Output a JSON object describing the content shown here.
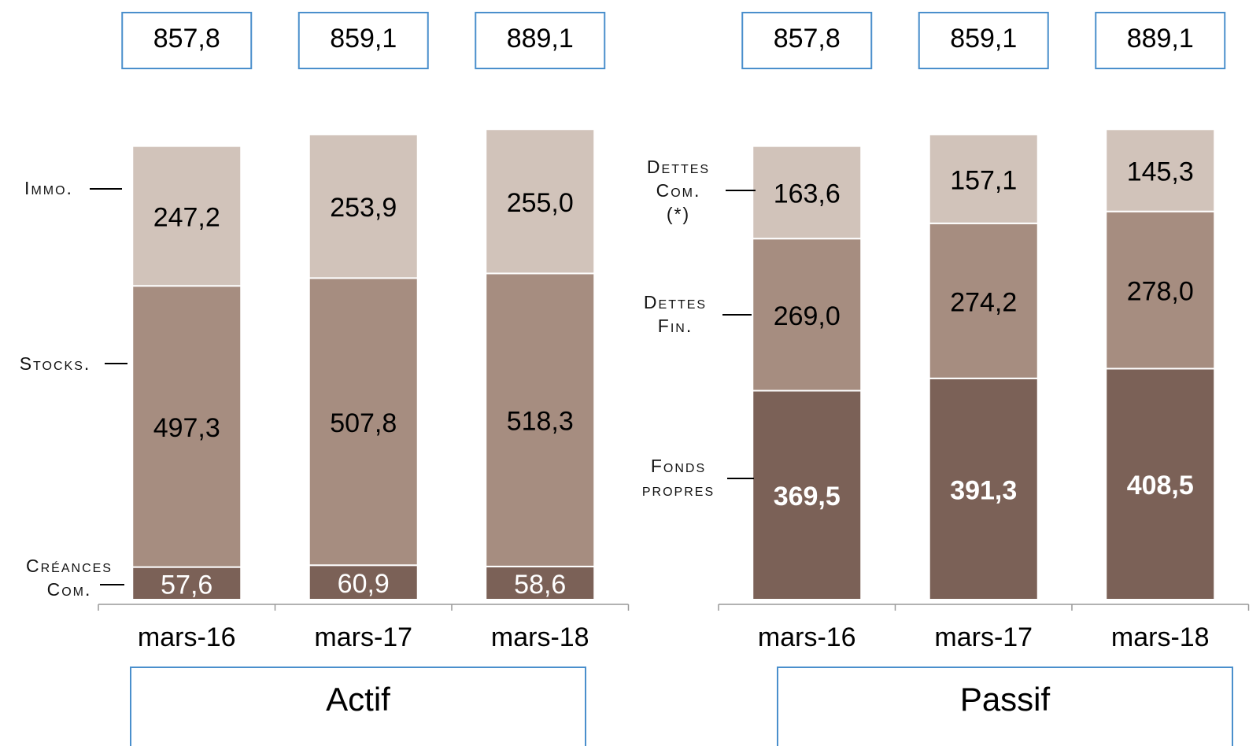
{
  "chart_data": [
    {
      "type": "bar",
      "stacked": true,
      "title": "Actif",
      "categories": [
        "mars-16",
        "mars-17",
        "mars-18"
      ],
      "totals": {
        "values": [
          857.8,
          859.1,
          889.1
        ],
        "value_labels": [
          "857,8",
          "859,1",
          "889,1"
        ]
      },
      "ylim": [
        0,
        835
      ],
      "series": [
        {
          "name": "Créances Com.",
          "color": "#7b6157",
          "label_color": "#ffffff",
          "bold": false,
          "values": [
            57.6,
            60.9,
            58.6
          ],
          "value_labels": [
            "57,6",
            "60,9",
            "58,6"
          ]
        },
        {
          "name": "Stocks.",
          "color": "#a68d80",
          "label_color": "#000000",
          "bold": false,
          "values": [
            497.3,
            507.8,
            518.3
          ],
          "value_labels": [
            "497,3",
            "507,8",
            "518,3"
          ]
        },
        {
          "name": "Immo.",
          "color": "#d1c3ba",
          "label_color": "#000000",
          "bold": false,
          "values": [
            247.2,
            253.9,
            255.0
          ],
          "value_labels": [
            "247,2",
            "253,9",
            "255,0"
          ]
        }
      ]
    },
    {
      "type": "bar",
      "stacked": true,
      "title": "Passif",
      "categories": [
        "mars-16",
        "mars-17",
        "mars-18"
      ],
      "totals": {
        "values": [
          857.8,
          859.1,
          889.1
        ],
        "value_labels": [
          "857,8",
          "859,1",
          "889,1"
        ]
      },
      "ylim": [
        0,
        835
      ],
      "series": [
        {
          "name": "Fonds propres",
          "color": "#7b6157",
          "label_color": "#ffffff",
          "bold": true,
          "values": [
            369.5,
            391.3,
            408.5
          ],
          "value_labels": [
            "369,5",
            "391,3",
            "408,5"
          ]
        },
        {
          "name": "Dettes Fin.",
          "color": "#a68d80",
          "label_color": "#000000",
          "bold": false,
          "values": [
            269.0,
            274.2,
            278.0
          ],
          "value_labels": [
            "269,0",
            "274,2",
            "278,0"
          ]
        },
        {
          "name": "Dettes Com.(*)",
          "color": "#d1c3ba",
          "label_color": "#000000",
          "bold": false,
          "values": [
            163.6,
            157.1,
            145.3
          ],
          "value_labels": [
            "163,6",
            "157,1",
            "145,3"
          ]
        }
      ]
    }
  ]
}
